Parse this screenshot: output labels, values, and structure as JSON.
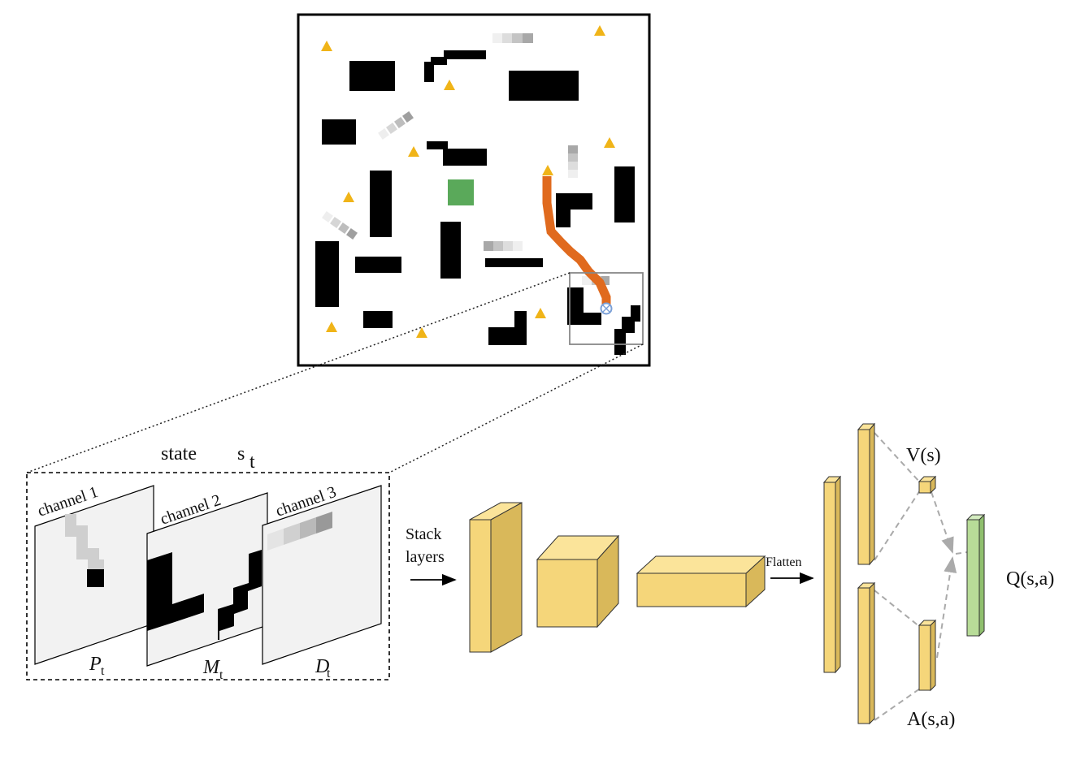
{
  "state_label": {
    "prefix": "state",
    "symbol": "s",
    "subscript": "t"
  },
  "channels": [
    {
      "title": "channel 1",
      "symbol": "P",
      "subscript": "t"
    },
    {
      "title": "channel 2",
      "symbol": "M",
      "subscript": "t"
    },
    {
      "title": "channel 3",
      "symbol": "D",
      "subscript": "t"
    }
  ],
  "stack_label": {
    "line1": "Stack",
    "line2": "layers"
  },
  "flatten_label": "Flatten",
  "value_label": "V(s)",
  "advantage_label": "A(s,a)",
  "q_label": "Q(s,a)",
  "colors": {
    "obstacle": "#000000",
    "goal": "#5aa95a",
    "path": "#e06a1e",
    "target_marker": "#f0b418",
    "agent": "#7a9fd6",
    "layer_face": "#f5d67a",
    "layer_side": "#d9b85a",
    "layer_top": "#fbe49a",
    "q_face": "#b8dc98",
    "q_side": "#8fbf6e",
    "connector": "#aaaaaa"
  },
  "icons": [
    "triangle-marker-icon",
    "agent-marker-icon",
    "arrow-right-icon"
  ]
}
